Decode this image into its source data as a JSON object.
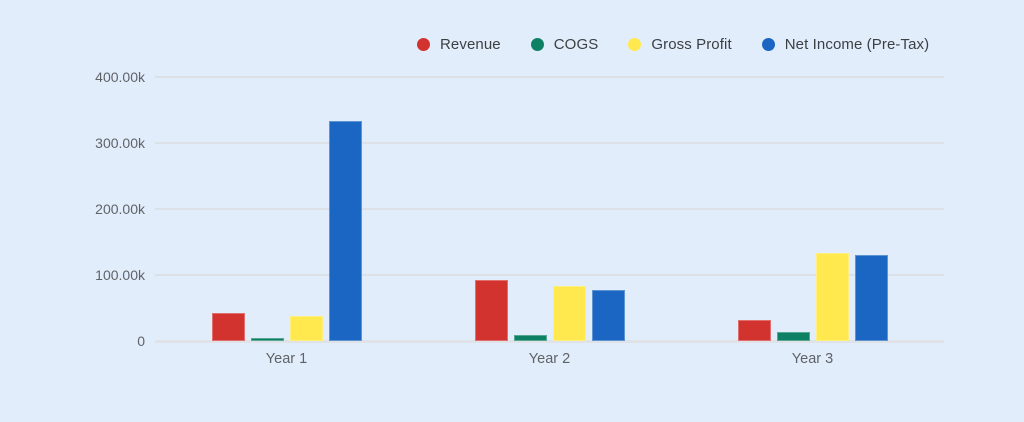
{
  "chart_data": {
    "type": "bar",
    "title": "",
    "categories": [
      "Year 1",
      "Year 2",
      "Year 3"
    ],
    "series": [
      {
        "name": "Revenue",
        "color": "#D2332E",
        "values": [
          43000,
          92000,
          32500
        ]
      },
      {
        "name": "COGS",
        "color": "#0E8165",
        "values": [
          4500,
          9000,
          14000
        ]
      },
      {
        "name": "Gross Profit",
        "color": "#FFE94E",
        "values": [
          38500,
          83000,
          134000
        ]
      },
      {
        "name": "Net Income (Pre-Tax)",
        "color": "#1A66C2",
        "values": [
          333000,
          78000,
          130000
        ]
      }
    ],
    "y_axis": {
      "min": 0,
      "max": 400000,
      "tick_step": 100000,
      "tick_labels": [
        "0",
        "100.00k",
        "200.00k",
        "300.00k",
        "400.00k"
      ]
    },
    "xlabel": "",
    "ylabel": "",
    "legend_position": "top",
    "grid": true
  },
  "colors": {
    "background": "#E2EDFC",
    "gridline": "#DCE1E8",
    "baseline": "#DFE3E8",
    "axis_text": "#5F6368",
    "legend_text": "#3C4043"
  }
}
